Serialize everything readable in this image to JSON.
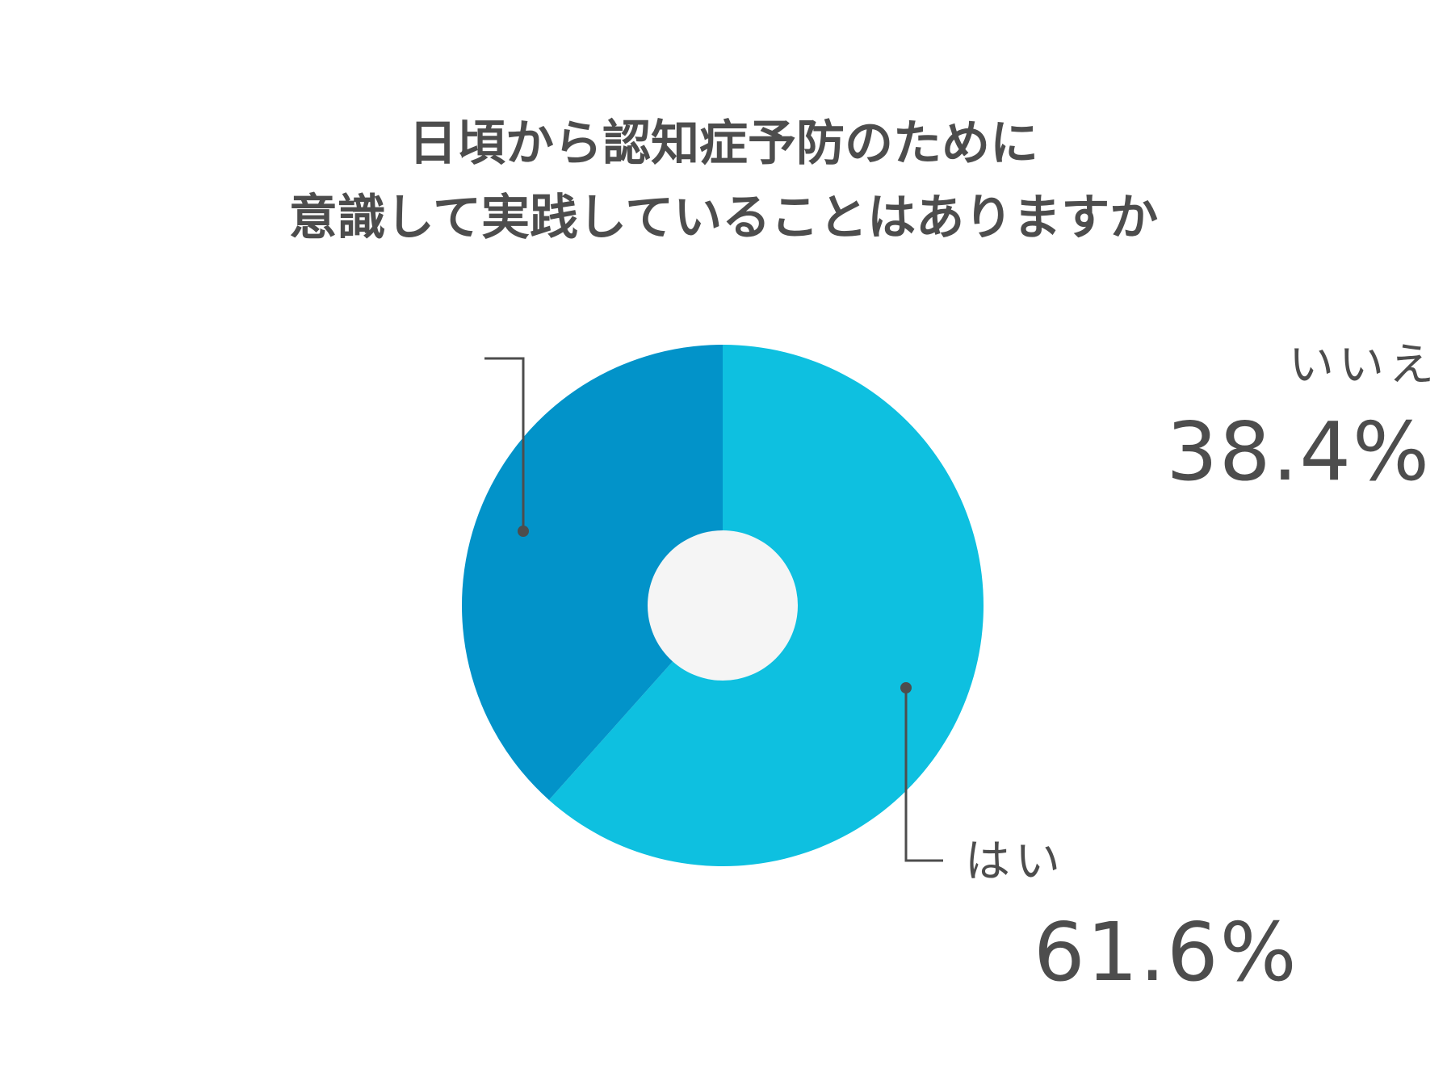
{
  "chart_data": {
    "type": "pie",
    "title_lines": [
      "日頃から認知症予防のために",
      "意識して実践していることはありますか"
    ],
    "slices": [
      {
        "label": "はい",
        "value": 61.6,
        "value_text": "61.6%",
        "color": "#0ec0e0"
      },
      {
        "label": "いいえ",
        "value": 38.4,
        "value_text": "38.4%",
        "color": "#0293c9"
      }
    ],
    "center_color": "#f5f5f5",
    "leader_line_color": "#4d4d4d"
  }
}
